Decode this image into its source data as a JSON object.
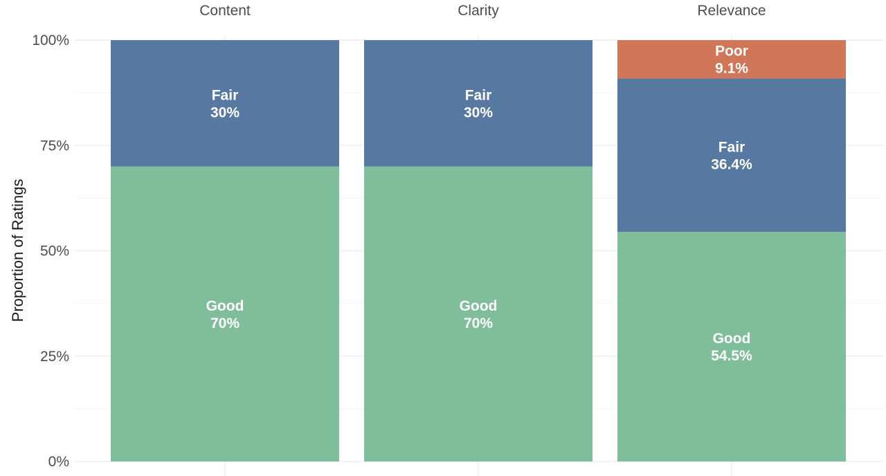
{
  "chart_data": {
    "type": "bar",
    "stacked": true,
    "normalized": true,
    "ylabel": "Proportion of Ratings",
    "ylim": [
      0,
      1
    ],
    "y_ticks": [
      "0%",
      "25%",
      "50%",
      "75%",
      "100%"
    ],
    "y_tick_values": [
      0,
      0.25,
      0.5,
      0.75,
      1.0
    ],
    "grid": true,
    "legend": "none",
    "colors": {
      "Good": "#7fbd9b",
      "Fair": "#5778a0",
      "Poor": "#d0775a"
    },
    "categories": [
      "Content",
      "Clarity",
      "Relevance"
    ],
    "series": [
      {
        "name": "Good",
        "values": [
          0.7,
          0.7,
          0.545
        ],
        "labels": [
          "70%",
          "70%",
          "54.5%"
        ]
      },
      {
        "name": "Fair",
        "values": [
          0.3,
          0.3,
          0.364
        ],
        "labels": [
          "30%",
          "30%",
          "36.4%"
        ]
      },
      {
        "name": "Poor",
        "values": [
          0.0,
          0.0,
          0.091
        ],
        "labels": [
          "",
          "",
          "9.1%"
        ]
      }
    ]
  }
}
